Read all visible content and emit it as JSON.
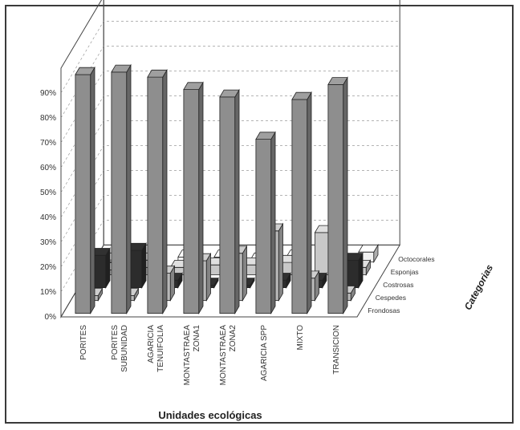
{
  "chart_data": {
    "type": "bar",
    "subtype": "3d-grouped",
    "title": "",
    "xlabel": "Unidades ecológicas",
    "zlabel": "Categorias",
    "y_ticks": [
      "0%",
      "10%",
      "20%",
      "30%",
      "40%",
      "50%",
      "60%",
      "70%",
      "80%",
      "90%"
    ],
    "ylim": [
      0,
      100
    ],
    "grid": true,
    "categories": [
      [
        "PORITES"
      ],
      [
        "PORITES",
        "SUBUNIDAD"
      ],
      [
        "AGARICIA",
        "TENUIFOLIA"
      ],
      [
        "MONTASTRAEA",
        "ZONA1"
      ],
      [
        "MONTASTRAEA",
        "ZONA2"
      ],
      [
        "AGARICIA SPP"
      ],
      [
        "MIXTO"
      ],
      [
        "TRANSICION"
      ]
    ],
    "series": [
      {
        "name": "Frondosas",
        "color": "#8e8e8e",
        "values": [
          96,
          97,
          95,
          90,
          87,
          70,
          86,
          92
        ]
      },
      {
        "name": "Cespedes",
        "color": "#b8b8b8",
        "values": [
          2,
          2,
          11,
          16,
          19,
          28,
          9,
          3
        ]
      },
      {
        "name": "Costrosas",
        "color": "#2c2c2c",
        "values": [
          13,
          15,
          3,
          1,
          1,
          3,
          3,
          11
        ]
      },
      {
        "name": "Esponjas",
        "color": "#c8c8c8",
        "values": [
          2,
          3,
          3,
          4,
          4,
          5,
          17,
          3
        ]
      },
      {
        "name": "Octocorales",
        "color": "#f2f2f2",
        "values": [
          0,
          0,
          2,
          2,
          0,
          2,
          4,
          4
        ]
      }
    ]
  }
}
